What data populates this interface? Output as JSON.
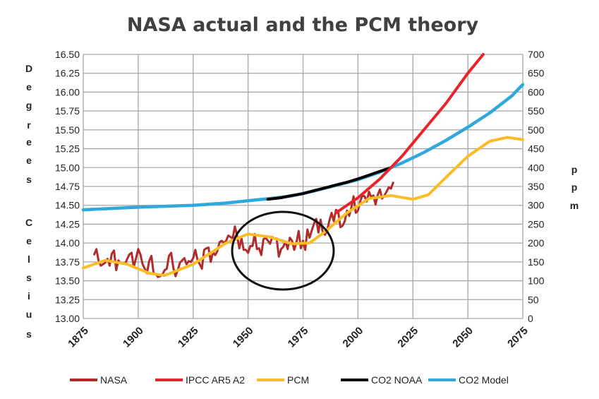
{
  "chart_data": {
    "type": "line",
    "title": "NASA actual and the PCM theory",
    "ylabel": "Degrees Celsius",
    "y2label": "ppm",
    "xlim": [
      1875,
      2075
    ],
    "ylim": [
      13.0,
      16.5
    ],
    "y2lim": [
      0,
      700
    ],
    "x_ticks": [
      "1875",
      "1900",
      "1925",
      "1950",
      "1975",
      "2000",
      "2025",
      "2050",
      "2075"
    ],
    "y_ticks": [
      "13.00",
      "13.25",
      "13.50",
      "13.75",
      "14.00",
      "14.25",
      "14.50",
      "14.75",
      "15.00",
      "15.25",
      "15.50",
      "15.75",
      "16.00",
      "16.25",
      "16.50"
    ],
    "y2_ticks": [
      "0",
      "50",
      "100",
      "150",
      "200",
      "250",
      "300",
      "350",
      "400",
      "450",
      "500",
      "550",
      "600",
      "650",
      "700"
    ],
    "grid": true,
    "legend_position": "bottom",
    "series": [
      {
        "name": "NASA",
        "axis": "left",
        "color": "#b22b2b",
        "x": [
          1880,
          1881,
          1882,
          1883,
          1884,
          1885,
          1886,
          1887,
          1888,
          1889,
          1890,
          1891,
          1892,
          1893,
          1894,
          1895,
          1896,
          1897,
          1898,
          1899,
          1900,
          1901,
          1902,
          1903,
          1904,
          1905,
          1906,
          1907,
          1908,
          1909,
          1910,
          1911,
          1912,
          1913,
          1914,
          1915,
          1916,
          1917,
          1918,
          1919,
          1920,
          1921,
          1922,
          1923,
          1924,
          1925,
          1926,
          1927,
          1928,
          1929,
          1930,
          1931,
          1932,
          1933,
          1934,
          1935,
          1936,
          1937,
          1938,
          1939,
          1940,
          1941,
          1942,
          1943,
          1944,
          1945,
          1946,
          1947,
          1948,
          1949,
          1950,
          1951,
          1952,
          1953,
          1954,
          1955,
          1956,
          1957,
          1958,
          1959,
          1960,
          1961,
          1962,
          1963,
          1964,
          1965,
          1966,
          1967,
          1968,
          1969,
          1970,
          1971,
          1972,
          1973,
          1974,
          1975,
          1976,
          1977,
          1978,
          1979,
          1980,
          1981,
          1982,
          1983,
          1984,
          1985,
          1986,
          1987,
          1988,
          1989,
          1990,
          1991,
          1992,
          1993,
          1994,
          1995,
          1996,
          1997,
          1998,
          1999,
          2000,
          2001,
          2002,
          2003,
          2004,
          2005,
          2006,
          2007,
          2008,
          2009,
          2010,
          2011,
          2012,
          2013,
          2014,
          2015,
          2016
        ],
        "y": [
          13.85,
          13.92,
          13.76,
          13.7,
          13.72,
          13.74,
          13.79,
          13.7,
          13.86,
          13.9,
          13.64,
          13.77,
          13.73,
          13.73,
          13.72,
          13.79,
          13.85,
          13.87,
          13.68,
          13.8,
          13.92,
          13.85,
          13.72,
          13.66,
          13.6,
          13.76,
          13.83,
          13.6,
          13.59,
          13.55,
          13.56,
          13.58,
          13.64,
          13.66,
          13.83,
          13.87,
          13.67,
          13.56,
          13.64,
          13.74,
          13.77,
          13.8,
          13.72,
          13.76,
          13.75,
          13.8,
          13.91,
          13.77,
          13.72,
          13.66,
          13.91,
          13.93,
          13.94,
          13.75,
          13.88,
          13.84,
          13.89,
          14.01,
          14.03,
          14.0,
          14.03,
          14.1,
          14.08,
          14.06,
          14.22,
          14.1,
          13.93,
          14.06,
          13.91,
          13.91,
          13.87,
          13.96,
          13.96,
          14.12,
          13.92,
          13.93,
          13.84,
          14.05,
          14.07,
          14.03,
          13.99,
          14.08,
          14.06,
          14.06,
          13.82,
          13.92,
          13.95,
          14.02,
          13.92,
          14.07,
          14.03,
          13.91,
          14.01,
          14.16,
          13.93,
          14.03,
          13.91,
          14.18,
          14.07,
          14.17,
          14.26,
          14.32,
          14.14,
          14.31,
          14.14,
          14.11,
          14.17,
          14.3,
          14.4,
          14.29,
          14.44,
          14.42,
          14.21,
          14.23,
          14.29,
          14.43,
          14.36,
          14.47,
          14.62,
          14.4,
          14.43,
          14.55,
          14.63,
          14.62,
          14.55,
          14.68,
          14.61,
          14.63,
          14.51,
          14.64,
          14.71,
          14.59,
          14.63,
          14.68,
          14.74,
          14.72,
          14.8
        ]
      },
      {
        "name": "IPCC AR5 A2",
        "axis": "left",
        "color": "#e8242b",
        "x": [
          1990,
          2000,
          2010,
          2020,
          2030,
          2040,
          2050,
          2057
        ],
        "y": [
          14.4,
          14.6,
          14.85,
          15.15,
          15.5,
          15.85,
          16.25,
          16.5
        ]
      },
      {
        "name": "PCM",
        "axis": "left",
        "color": "#fbbd26",
        "x": [
          1875,
          1885,
          1895,
          1905,
          1912,
          1925,
          1940,
          1950,
          1960,
          1970,
          1978,
          1985,
          1995,
          2005,
          2015,
          2025,
          2032,
          2040,
          2050,
          2060,
          2068,
          2075
        ],
        "y": [
          13.67,
          13.77,
          13.72,
          13.6,
          13.57,
          13.72,
          14.0,
          14.12,
          14.08,
          13.99,
          14.0,
          14.15,
          14.4,
          14.59,
          14.63,
          14.58,
          14.64,
          14.87,
          15.15,
          15.35,
          15.4,
          15.37
        ]
      },
      {
        "name": "CO2 NOAA",
        "axis": "right",
        "color": "#000000",
        "x": [
          1959,
          1965,
          1970,
          1975,
          1980,
          1985,
          1990,
          1995,
          2000,
          2005,
          2010,
          2014
        ],
        "y": [
          316,
          320,
          326,
          331,
          339,
          346,
          354,
          361,
          370,
          380,
          390,
          398
        ]
      },
      {
        "name": "CO2 Model",
        "axis": "right",
        "color": "#31a8dc",
        "x": [
          1875,
          1900,
          1925,
          1940,
          1950,
          1960,
          1970,
          1980,
          1990,
          2000,
          2010,
          2020,
          2030,
          2040,
          2050,
          2060,
          2070,
          2075
        ],
        "y": [
          288,
          295,
          300,
          306,
          312,
          318,
          325,
          338,
          353,
          368,
          388,
          412,
          440,
          472,
          507,
          545,
          590,
          620
        ]
      }
    ]
  }
}
